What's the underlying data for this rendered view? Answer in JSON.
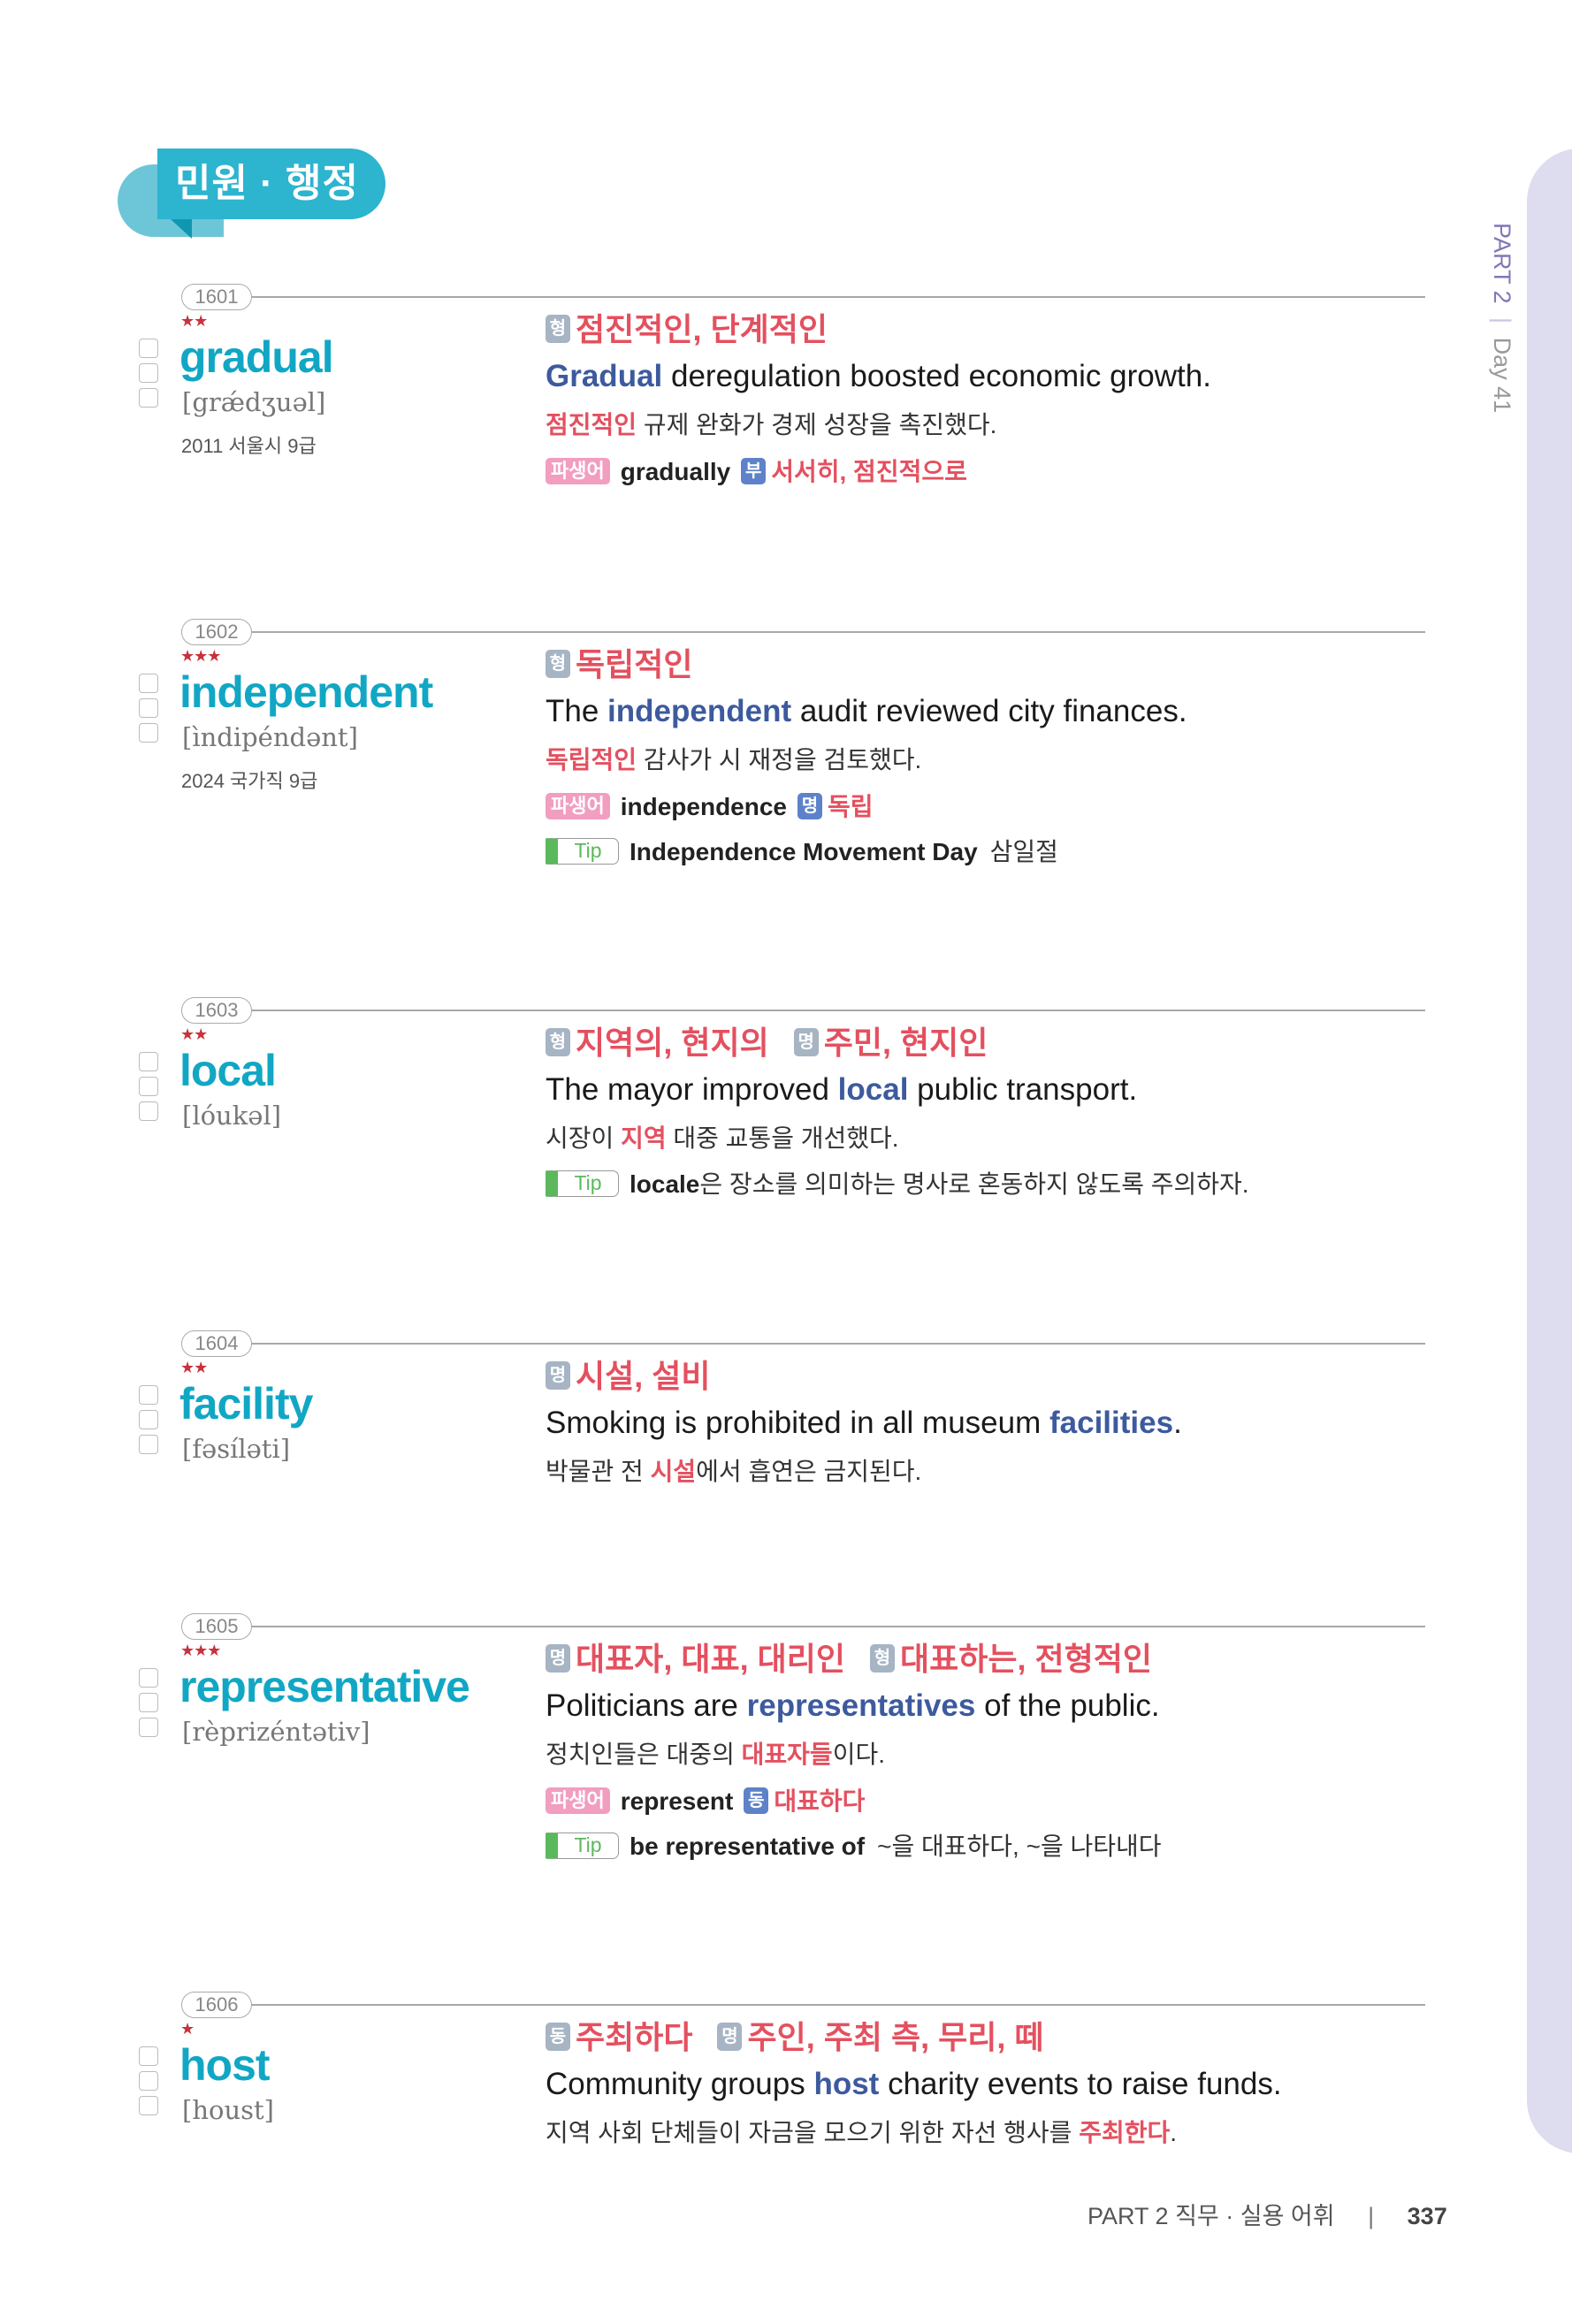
{
  "section_title": "민원 · 행정",
  "side": {
    "part": "PART 2",
    "sep": "|",
    "day": "Day 41"
  },
  "footer": {
    "part": "PART 2",
    "title": "직무 · 실용 어휘",
    "sep": "|",
    "page": "337"
  },
  "colors": {
    "headword": "#11a7c4",
    "meaning": "#e4505f",
    "example_highlight": "#3d5a9e",
    "stars": "#c7323c",
    "tip": "#5cb85c",
    "side_tab": "#dedcef"
  },
  "labels": {
    "derivative": "파생어",
    "tip": "Tip"
  },
  "entries": [
    {
      "num": "1601",
      "stars": "★★",
      "word": "gradual",
      "pron": "[grǽdʒuəl]",
      "exam": "2011 서울시 9급",
      "meanings": [
        {
          "pos": "형",
          "text": "점진적인, 단계적인"
        }
      ],
      "sentence": [
        {
          "t": "Gradual",
          "hl": true
        },
        {
          "t": " deregulation boosted economic growth."
        }
      ],
      "korean": [
        {
          "t": "점진적인",
          "hl": true
        },
        {
          "t": " 규제 완화가 경제 성장을 촉진했다."
        }
      ],
      "derivative": {
        "word": "gradually",
        "pos": "부",
        "meaning": "서서히, 점진적으로"
      }
    },
    {
      "num": "1602",
      "stars": "★★★",
      "word": "independent",
      "pron": "[ìndipéndənt]",
      "exam": "2024 국가직 9급",
      "meanings": [
        {
          "pos": "형",
          "text": "독립적인"
        }
      ],
      "sentence": [
        {
          "t": "The "
        },
        {
          "t": "independent",
          "hl": true
        },
        {
          "t": " audit reviewed city finances."
        }
      ],
      "korean": [
        {
          "t": "독립적인",
          "hl": true
        },
        {
          "t": " 감사가 시 재정을 검토했다."
        }
      ],
      "derivative": {
        "word": "independence",
        "pos": "명",
        "meaning": "독립"
      },
      "tip": {
        "en": "Independence Movement Day",
        "ko": "삼일절"
      }
    },
    {
      "num": "1603",
      "stars": "★★",
      "word": "local",
      "pron": "[lóukəl]",
      "meanings": [
        {
          "pos": "형",
          "text": "지역의, 현지의"
        },
        {
          "pos": "명",
          "text": "주민, 현지인"
        }
      ],
      "sentence": [
        {
          "t": "The mayor improved "
        },
        {
          "t": "local",
          "hl": true
        },
        {
          "t": " public transport."
        }
      ],
      "korean": [
        {
          "t": "시장이 "
        },
        {
          "t": "지역",
          "hl": true
        },
        {
          "t": " 대중 교통을 개선했다."
        }
      ],
      "tip": {
        "en": "locale",
        "ko": "은 장소를 의미하는 명사로 혼동하지 않도록 주의하자.",
        "tight": true
      }
    },
    {
      "num": "1604",
      "stars": "★★",
      "word": "facility",
      "pron": "[fəsíləti]",
      "meanings": [
        {
          "pos": "명",
          "text": "시설, 설비"
        }
      ],
      "sentence": [
        {
          "t": "Smoking is prohibited in all museum "
        },
        {
          "t": "facilities",
          "hl": true
        },
        {
          "t": "."
        }
      ],
      "korean": [
        {
          "t": "박물관 전 "
        },
        {
          "t": "시설",
          "hl": true
        },
        {
          "t": "에서 흡연은 금지된다."
        }
      ]
    },
    {
      "num": "1605",
      "stars": "★★★",
      "word": "representative",
      "pron": "[rèprizéntətiv]",
      "meanings": [
        {
          "pos": "명",
          "text": "대표자, 대표, 대리인"
        },
        {
          "pos": "형",
          "text": "대표하는, 전형적인"
        }
      ],
      "sentence": [
        {
          "t": "Politicians are "
        },
        {
          "t": "representatives",
          "hl": true
        },
        {
          "t": " of the public."
        }
      ],
      "korean": [
        {
          "t": "정치인들은 대중의 "
        },
        {
          "t": "대표자들",
          "hl": true
        },
        {
          "t": "이다."
        }
      ],
      "derivative": {
        "word": "represent",
        "pos": "동",
        "meaning": "대표하다"
      },
      "tip": {
        "en": "be representative of",
        "ko": "~을 대표하다, ~을 나타내다"
      }
    },
    {
      "num": "1606",
      "stars": "★",
      "word": "host",
      "pron": "[houst]",
      "meanings": [
        {
          "pos": "동",
          "text": "주최하다"
        },
        {
          "pos": "명",
          "text": "주인, 주최 측, 무리, 떼"
        }
      ],
      "sentence": [
        {
          "t": "Community groups "
        },
        {
          "t": "host",
          "hl": true
        },
        {
          "t": " charity events to raise funds."
        }
      ],
      "korean": [
        {
          "t": "지역 사회 단체들이 자금을 모으기 위한 자선 행사를 "
        },
        {
          "t": "주최한다",
          "hl": true
        },
        {
          "t": "."
        }
      ]
    }
  ]
}
